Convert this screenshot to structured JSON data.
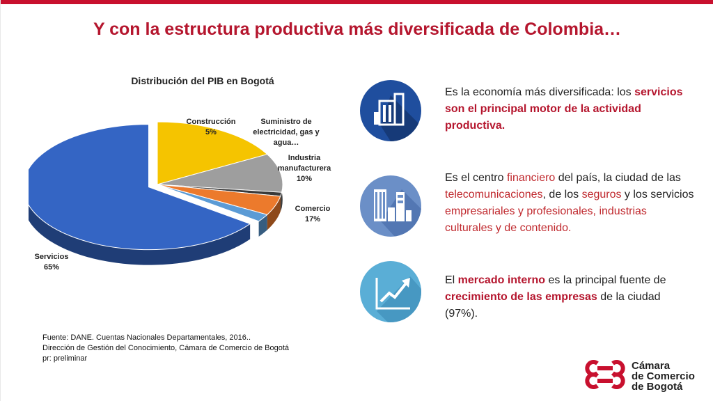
{
  "slide": {
    "title": "Y con la estructura productiva más diversificada de Colombia…"
  },
  "chart_data": {
    "type": "pie",
    "title": "Distribución del PIB en Bogotá",
    "slices": [
      {
        "label": "Servicios",
        "value": 65,
        "value_label": "65%",
        "color": "#3465c4"
      },
      {
        "label": "Comercio",
        "value": 17,
        "value_label": "17%",
        "color": "#f5c400"
      },
      {
        "label": "Industria manufacturera",
        "value": 10,
        "value_label": "10%",
        "color": "#9e9e9e"
      },
      {
        "label": "Suministro de electricidad, gas y agua…",
        "value": 1,
        "value_label": "",
        "color": "#3a3a3a"
      },
      {
        "label": "Construcción",
        "value": 5,
        "value_label": "5%",
        "color": "#ec7a2c"
      },
      {
        "label": "",
        "value": 2,
        "value_label": "",
        "color": "#5b9bd5"
      }
    ]
  },
  "labels": {
    "construccion": {
      "name": "Construcción",
      "pct": "5%"
    },
    "suministro": {
      "line1": "Suministro de",
      "line2": "electricidad, gas y",
      "line3": "agua…"
    },
    "industria": {
      "line1": "Industria",
      "line2": "manufacturera",
      "pct": "10%"
    },
    "comercio": {
      "name": "Comercio",
      "pct": "17%"
    },
    "servicios": {
      "name": "Servicios",
      "pct": "65%"
    }
  },
  "points": [
    {
      "icon": "buildings-icon",
      "color": "#1f4e9e",
      "t1": "Es la economía más diversificada: los ",
      "t2": "servicios son el principal motor de la actividad productiva."
    },
    {
      "icon": "city-skyline-icon",
      "color": "#6b8fc7",
      "t1": "Es el centro ",
      "t2": "financiero",
      "t3": " del país, la ciudad de las ",
      "t4": "telecomunicaciones",
      "t5": ", de los ",
      "t6": "seguros",
      "t7": " y los servicios ",
      "t8": "empresariales y profesionales, industrias culturales y de contenido."
    },
    {
      "icon": "growth-chart-icon",
      "color": "#5aaed6",
      "t1": "El ",
      "t2": "mercado interno",
      "t3": " es la principal fuente de ",
      "t4": "crecimiento de las empresas",
      "t5": " de la ciudad (97%)."
    }
  ],
  "source": {
    "line1": "Fuente: DANE. Cuentas Nacionales Departamentales, 2016..",
    "line2": "Dirección de Gestión del Conocimiento, Cámara de Comercio de Bogotá",
    "line3": "pr: preliminar"
  },
  "logo": {
    "line1": "Cámara",
    "line2": "de Comercio",
    "line3": "de Bogotá",
    "color": "#c8102e"
  }
}
